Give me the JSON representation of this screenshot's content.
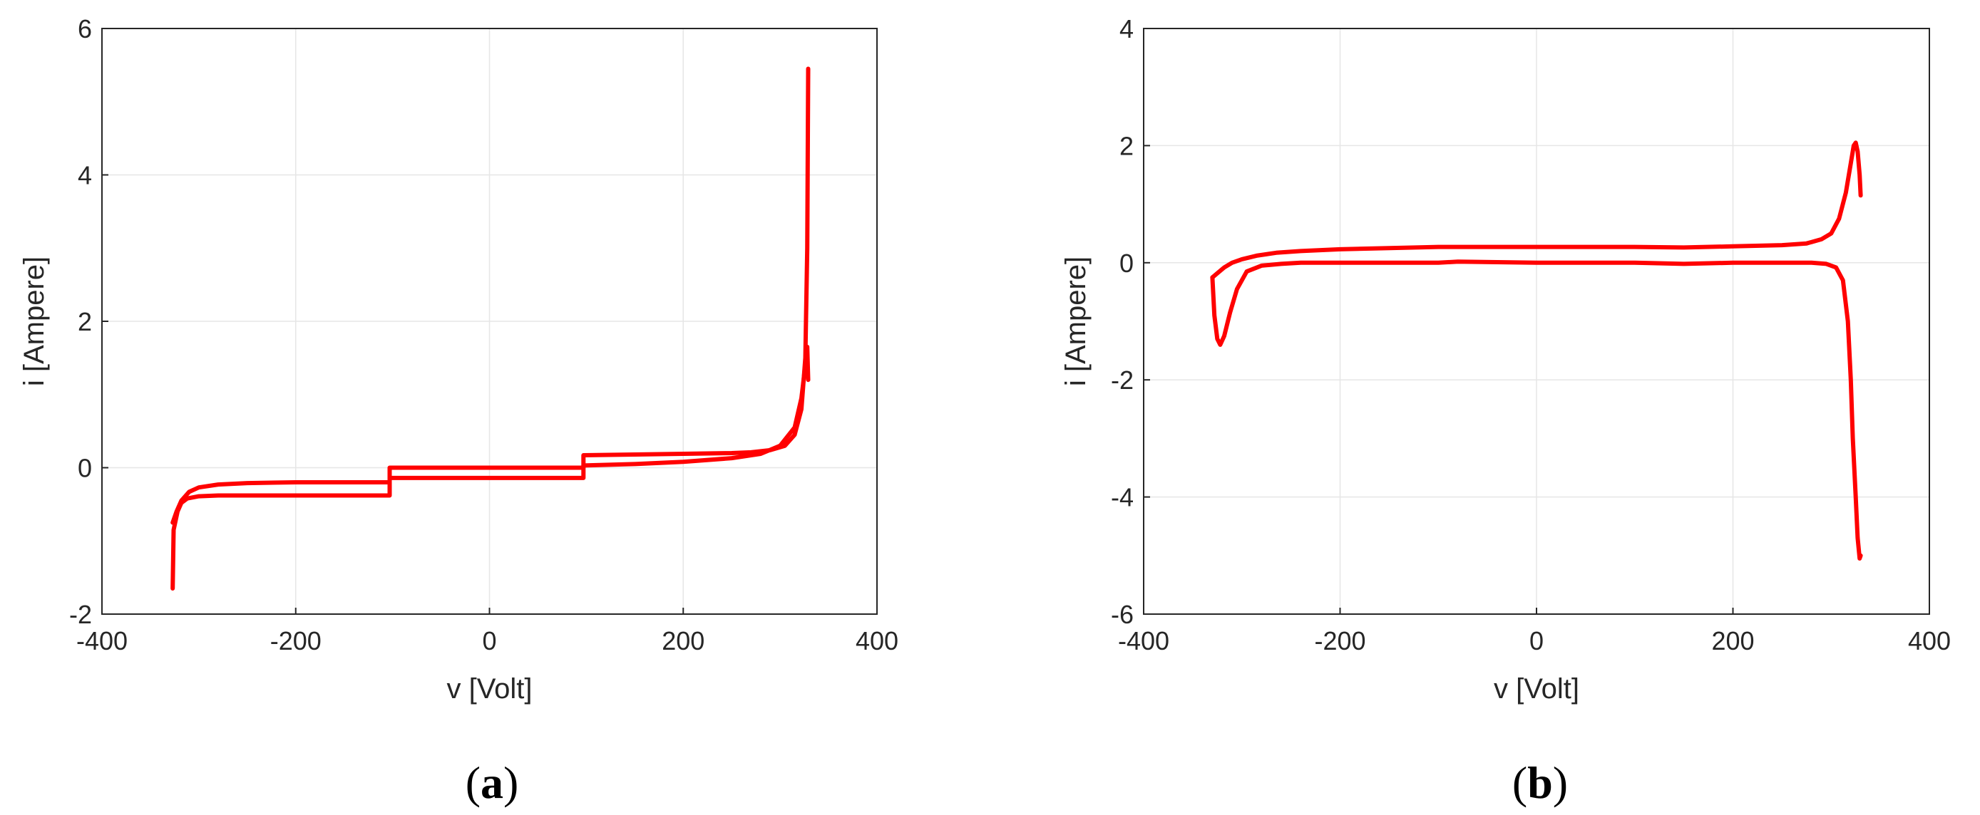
{
  "figure": {
    "panels": [
      {
        "caption_open": "(",
        "caption_letter": "a",
        "caption_close": ")"
      },
      {
        "caption_open": "(",
        "caption_letter": "b",
        "caption_close": ")"
      }
    ]
  },
  "chart_data": [
    {
      "type": "line",
      "title": "",
      "xlabel": "v [Volt]",
      "ylabel": "i [Ampere]",
      "xlim": [
        -400,
        400
      ],
      "ylim": [
        -2,
        6
      ],
      "xticks": [
        -400,
        -200,
        0,
        200,
        400
      ],
      "yticks": [
        -2,
        0,
        2,
        4,
        6
      ],
      "grid": true,
      "color": "#ff0000",
      "series": [
        {
          "x": [
            -327,
            -326,
            -322,
            -318,
            -312,
            -300,
            -280,
            -240,
            -200,
            -150,
            -103,
            -103,
            -50,
            0,
            50,
            97,
            97,
            150,
            200,
            250,
            280,
            300,
            315,
            322,
            326,
            328,
            329
          ],
          "y": [
            -1.65,
            -0.85,
            -0.6,
            -0.48,
            -0.42,
            -0.39,
            -0.38,
            -0.38,
            -0.38,
            -0.38,
            -0.38,
            -0.14,
            -0.14,
            -0.14,
            -0.14,
            -0.14,
            0.03,
            0.05,
            0.08,
            0.13,
            0.19,
            0.3,
            0.55,
            0.95,
            1.4,
            1.65,
            1.2
          ]
        },
        {
          "x": [
            329,
            328,
            326,
            322,
            315,
            305,
            290,
            270,
            250,
            200,
            150,
            97,
            97,
            50,
            0,
            -50,
            -103,
            -103,
            -150,
            -200,
            -250,
            -280,
            -300,
            -310,
            -318,
            -323,
            -327
          ],
          "y": [
            5.45,
            3.0,
            1.5,
            0.8,
            0.45,
            0.3,
            0.24,
            0.21,
            0.2,
            0.19,
            0.18,
            0.17,
            0.0,
            0.0,
            0.0,
            0.0,
            0.0,
            -0.2,
            -0.2,
            -0.2,
            -0.21,
            -0.23,
            -0.27,
            -0.33,
            -0.45,
            -0.6,
            -0.75
          ]
        }
      ]
    },
    {
      "type": "line",
      "title": "",
      "xlabel": "v [Volt]",
      "ylabel": "i [Ampere]",
      "xlim": [
        -400,
        400
      ],
      "ylim": [
        -6,
        4
      ],
      "xticks": [
        -400,
        -200,
        0,
        200,
        400
      ],
      "yticks": [
        -6,
        -4,
        -2,
        0,
        2,
        4
      ],
      "grid": true,
      "color": "#ff0000",
      "series": [
        {
          "x": [
            -330,
            -328,
            -325,
            -322,
            -318,
            -312,
            -305,
            -295,
            -280,
            -260,
            -240,
            -200,
            -150,
            -100,
            -80,
            0,
            100,
            150,
            200,
            250,
            280,
            295,
            305,
            312,
            317,
            320,
            322,
            325,
            327,
            329,
            330
          ],
          "y": [
            -0.25,
            -0.9,
            -1.3,
            -1.4,
            -1.25,
            -0.85,
            -0.45,
            -0.15,
            -0.05,
            -0.02,
            0.0,
            0.0,
            0.0,
            0.0,
            0.02,
            0.0,
            0.0,
            -0.02,
            0.0,
            0.0,
            0.0,
            -0.02,
            -0.08,
            -0.3,
            -1.0,
            -2.0,
            -3.0,
            -4.0,
            -4.7,
            -5.05,
            -5.0
          ]
        },
        {
          "x": [
            -330,
            -325,
            -318,
            -310,
            -300,
            -285,
            -265,
            -240,
            -200,
            -150,
            -100,
            0,
            100,
            150,
            200,
            250,
            275,
            290,
            300,
            308,
            315,
            320,
            323,
            325,
            327,
            329,
            330
          ],
          "y": [
            -0.25,
            -0.18,
            -0.08,
            0.0,
            0.06,
            0.12,
            0.17,
            0.2,
            0.23,
            0.25,
            0.27,
            0.27,
            0.27,
            0.26,
            0.28,
            0.3,
            0.33,
            0.4,
            0.5,
            0.75,
            1.2,
            1.7,
            2.0,
            2.05,
            1.9,
            1.5,
            1.15
          ]
        }
      ]
    }
  ]
}
